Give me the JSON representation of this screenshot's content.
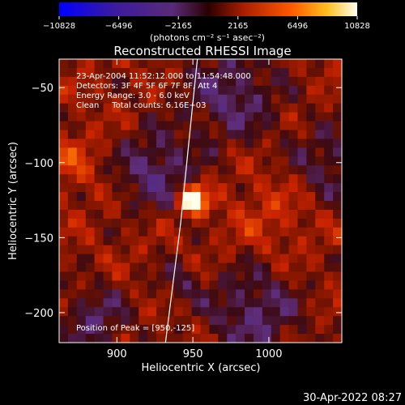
{
  "chart_data": {
    "type": "heatmap",
    "title": "Reconstructed RHESSI Image",
    "xlabel": "Heliocentric X (arcsec)",
    "ylabel": "Heliocentric Y (arcsec)",
    "xlim": [
      862,
      1048
    ],
    "ylim": [
      -220,
      -31
    ],
    "x_ticks": [
      900,
      950,
      1000
    ],
    "y_ticks": [
      -50,
      -100,
      -150,
      -200
    ],
    "colorbar": {
      "min": -10828,
      "max": 10828,
      "tick_values": [
        -10828,
        -6496,
        -2165,
        2165,
        6496,
        10828
      ],
      "tick_labels": [
        "−10828",
        "−6496",
        "−2165",
        "2165",
        "6496",
        "10828"
      ],
      "unit_label": "(photons cm⁻² s⁻¹ asec⁻²)"
    },
    "annotations": [
      "23-Apr-2004 11:52:12.000 to 11:54:48.000",
      "Detectors: 3F 4F 5F 6F 7F 8F, Att 4",
      "Energy Range: 3.0 - 6.0 keV",
      "Clean     Total counts: 6.16E+03",
      "Position of Peak = [950,-125]"
    ],
    "peak": {
      "x": 950,
      "y": -125,
      "value": 10828
    },
    "limb_curve": [
      [
        932,
        -220
      ],
      [
        937,
        -180
      ],
      [
        942,
        -140
      ],
      [
        946,
        -100
      ],
      [
        950,
        -60
      ],
      [
        953,
        -31
      ]
    ]
  },
  "footer": {
    "timestamp": "30-Apr-2022 08:27"
  },
  "colors": {
    "background": "#000000",
    "text": "#ffffff"
  }
}
